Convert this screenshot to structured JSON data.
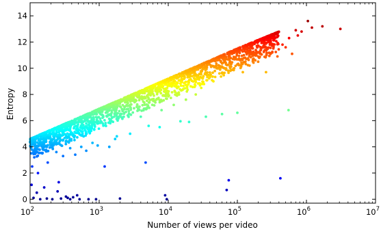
{
  "chart_data": {
    "type": "scatter",
    "xlabel": "Number of views per video",
    "ylabel": "Entropy",
    "x_scale": "log",
    "xlim": [
      100,
      10000000
    ],
    "ylim": [
      -0.3,
      15
    ],
    "grid": false,
    "colormap": "jet",
    "colormap_stops": [
      "#00008f",
      "#0000ff",
      "#0080ff",
      "#00ffff",
      "#80ff80",
      "#ffff00",
      "#ff8000",
      "#ff0000",
      "#800000"
    ],
    "x_ticks": [
      {
        "value": 100,
        "base": "10",
        "exp": "2"
      },
      {
        "value": 1000,
        "base": "10",
        "exp": "3"
      },
      {
        "value": 10000,
        "base": "10",
        "exp": "4"
      },
      {
        "value": 100000,
        "base": "10",
        "exp": "5"
      },
      {
        "value": 1000000,
        "base": "10",
        "exp": "6"
      },
      {
        "value": 10000000,
        "base": "10",
        "exp": "7"
      }
    ],
    "y_ticks": [
      0,
      2,
      4,
      6,
      8,
      10,
      12,
      14
    ],
    "dense_band": {
      "upper_bound": [
        [
          100,
          4.6
        ],
        [
          1000,
          6.9
        ],
        [
          10000,
          9.2
        ],
        [
          100000,
          11.5
        ],
        [
          400000,
          12.8
        ]
      ],
      "x_range": [
        100,
        400000
      ],
      "max_depth_below_bound": 1.6
    },
    "series": [
      {
        "points": [
          [
            105,
            1.1
          ],
          [
            112,
            0.1
          ],
          [
            125,
            0.5
          ],
          [
            140,
            0.0
          ],
          [
            160,
            0.9
          ],
          [
            175,
            0.05
          ],
          [
            210,
            0.0
          ],
          [
            250,
            0.6
          ],
          [
            260,
            1.3
          ],
          [
            280,
            0.05
          ],
          [
            330,
            0.2
          ],
          [
            350,
            0.1
          ],
          [
            380,
            0.0
          ],
          [
            420,
            0.15
          ],
          [
            480,
            0.3
          ],
          [
            520,
            0.0
          ],
          [
            700,
            0.0
          ],
          [
            900,
            0.0
          ],
          [
            2000,
            0.05
          ],
          [
            9000,
            0.3
          ],
          [
            9500,
            0.0
          ],
          [
            70000,
            0.7
          ],
          [
            75000,
            1.45
          ],
          [
            420000,
            1.6
          ],
          [
            107,
            2.5
          ],
          [
            115,
            3.2
          ],
          [
            130,
            2.0
          ],
          [
            150,
            3.5
          ],
          [
            180,
            2.8
          ],
          [
            240,
            3.6
          ],
          [
            300,
            3.3
          ],
          [
            380,
            3.9
          ],
          [
            450,
            3.4
          ],
          [
            550,
            4.0
          ],
          [
            650,
            3.7
          ],
          [
            800,
            4.3
          ],
          [
            950,
            4.1
          ],
          [
            1200,
            2.5
          ],
          [
            1400,
            4.0
          ],
          [
            1800,
            4.8
          ],
          [
            4700,
            2.8
          ],
          [
            1700,
            4.6
          ],
          [
            2800,
            5.0
          ],
          [
            5200,
            5.6
          ],
          [
            7500,
            5.5
          ],
          [
            15000,
            5.95
          ],
          [
            20000,
            5.9
          ],
          [
            35000,
            6.3
          ],
          [
            60000,
            6.5
          ],
          [
            100000,
            6.6
          ],
          [
            550000,
            6.8
          ],
          [
            4000,
            6.3
          ],
          [
            8000,
            6.8
          ],
          [
            12000,
            7.2
          ],
          [
            18000,
            7.6
          ],
          [
            25000,
            8.0
          ],
          [
            30000,
            8.5
          ],
          [
            45000,
            9.0
          ],
          [
            55000,
            9.6
          ],
          [
            65000,
            9.65
          ],
          [
            90000,
            10.0
          ],
          [
            120000,
            9.7
          ],
          [
            150000,
            10.2
          ],
          [
            200000,
            10.5
          ],
          [
            260000,
            9.7
          ],
          [
            320000,
            11.2
          ],
          [
            380000,
            10.9
          ],
          [
            450000,
            11.8
          ],
          [
            500000,
            11.6
          ],
          [
            560000,
            12.3
          ],
          [
            620000,
            11.1
          ],
          [
            700000,
            12.9
          ],
          [
            750000,
            12.5
          ],
          [
            1050000,
            13.6
          ],
          [
            1200000,
            13.1
          ],
          [
            1700000,
            13.2
          ],
          [
            3100000,
            13.0
          ],
          [
            850000,
            12.8
          ]
        ]
      }
    ]
  }
}
